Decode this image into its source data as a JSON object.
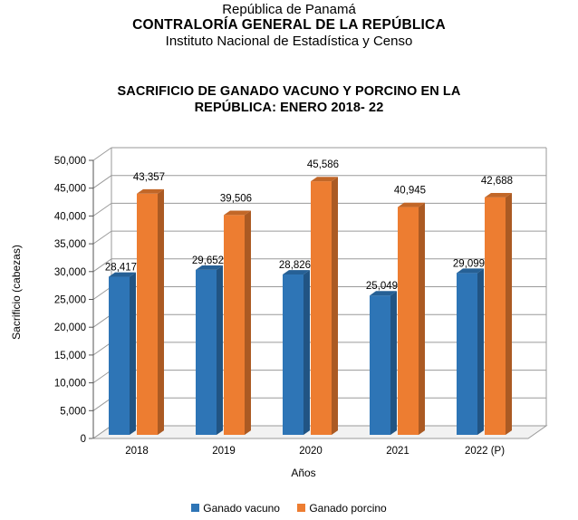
{
  "header": {
    "line1": "República de Panamá",
    "line2": "CONTRALORÍA  GENERAL DE LA REPÚBLICA",
    "line3": "Instituto Nacional de Estadística y Censo"
  },
  "colors": {
    "vacuno": "#2E75B6",
    "porcino": "#ED7D31"
  },
  "chart_data": {
    "type": "bar",
    "title_line1": "SACRIFICIO DE GANADO VACUNO Y PORCINO EN LA",
    "title_line2": "REPÚBLICA: ENERO 2018- 22",
    "xlabel": "Años",
    "ylabel": "Sacrificio (cabezas)",
    "ylim": [
      0,
      50000
    ],
    "yticks": [
      0,
      5000,
      10000,
      15000,
      20000,
      25000,
      30000,
      35000,
      40000,
      45000,
      50000
    ],
    "ytick_labels": [
      "0",
      "5,000",
      "10,000",
      "15,000",
      "20,000",
      "25,000",
      "30,000",
      "35,000",
      "40,000",
      "45,000",
      "50,000"
    ],
    "grid": true,
    "legend_position": "bottom",
    "categories": [
      "2018",
      "2019",
      "2020",
      "2021",
      "2022 (P)"
    ],
    "series": [
      {
        "name": "Ganado vacuno",
        "values": [
          28417,
          29652,
          28826,
          25049,
          29099
        ],
        "labels": [
          "28,417",
          "29,652",
          "28,826",
          "25,049",
          "29,099"
        ]
      },
      {
        "name": "Ganado porcino",
        "values": [
          43357,
          39506,
          45586,
          40945,
          42688
        ],
        "labels": [
          "43,357",
          "39,506",
          "45,586",
          "40,945",
          "42,688"
        ]
      }
    ]
  }
}
